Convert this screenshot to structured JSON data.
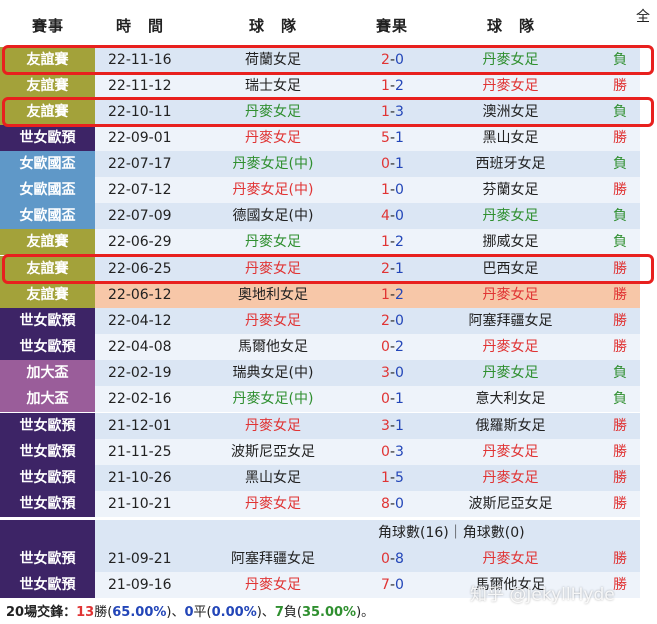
{
  "header": {
    "competition": "賽事",
    "date": "時　間",
    "home": "球　隊",
    "score": "賽果",
    "away": "球　隊",
    "extra": "全"
  },
  "colors": {
    "friendly": "#a3a23a",
    "euro_qual": "#3d2466",
    "women_euro": "#5f98c8",
    "algarve": "#9a5d9a",
    "win": "#e03434",
    "lose": "#2f8f2f",
    "highlight_box": "#e8201e"
  },
  "rows": [
    {
      "comp": "友誼賽",
      "type": "friendly",
      "date": "22-11-16",
      "home": "荷蘭女足",
      "home_c": "dark",
      "score_h": "2",
      "score_a": "0",
      "away": "丹麥女足",
      "away_c": "green",
      "res": "負",
      "res_c": "green"
    },
    {
      "comp": "友誼賽",
      "type": "friendly",
      "date": "22-11-12",
      "home": "瑞士女足",
      "home_c": "dark",
      "score_h": "1",
      "score_a": "2",
      "away": "丹麥女足",
      "away_c": "red",
      "res": "勝",
      "res_c": "red"
    },
    {
      "comp": "友誼賽",
      "type": "friendly",
      "date": "22-10-11",
      "home": "丹麥女足",
      "home_c": "green",
      "score_h": "1",
      "score_a": "3",
      "away": "澳洲女足",
      "away_c": "dark",
      "res": "負",
      "res_c": "green"
    },
    {
      "comp": "世女歐預",
      "type": "euro_qual",
      "date": "22-09-01",
      "home": "丹麥女足",
      "home_c": "red",
      "score_h": "5",
      "score_a": "1",
      "away": "黑山女足",
      "away_c": "dark",
      "res": "勝",
      "res_c": "red"
    },
    {
      "comp": "女歐國盃",
      "type": "women_euro",
      "date": "22-07-17",
      "home": "丹麥女足(中)",
      "home_c": "green",
      "score_h": "0",
      "score_a": "1",
      "away": "西班牙女足",
      "away_c": "dark",
      "res": "負",
      "res_c": "green"
    },
    {
      "comp": "女歐國盃",
      "type": "women_euro",
      "date": "22-07-12",
      "home": "丹麥女足(中)",
      "home_c": "red",
      "score_h": "1",
      "score_a": "0",
      "away": "芬蘭女足",
      "away_c": "dark",
      "res": "勝",
      "res_c": "red"
    },
    {
      "comp": "女歐國盃",
      "type": "women_euro",
      "date": "22-07-09",
      "home": "德國女足(中)",
      "home_c": "dark",
      "score_h": "4",
      "score_a": "0",
      "away": "丹麥女足",
      "away_c": "green",
      "res": "負",
      "res_c": "green"
    },
    {
      "comp": "友誼賽",
      "type": "friendly",
      "date": "22-06-29",
      "home": "丹麥女足",
      "home_c": "green",
      "score_h": "1",
      "score_a": "2",
      "away": "挪威女足",
      "away_c": "dark",
      "res": "負",
      "res_c": "green"
    },
    {
      "comp": "友誼賽",
      "type": "friendly",
      "date": "22-06-25",
      "home": "丹麥女足",
      "home_c": "red",
      "score_h": "2",
      "score_a": "1",
      "away": "巴西女足",
      "away_c": "dark",
      "res": "勝",
      "res_c": "red"
    },
    {
      "comp": "友誼賽",
      "type": "friendly",
      "date": "22-06-12",
      "home": "奧地利女足",
      "home_c": "dark",
      "score_h": "1",
      "score_a": "2",
      "away": "丹麥女足",
      "away_c": "red",
      "res": "勝",
      "res_c": "red"
    },
    {
      "comp": "世女歐預",
      "type": "euro_qual",
      "date": "22-04-12",
      "home": "丹麥女足",
      "home_c": "red",
      "score_h": "2",
      "score_a": "0",
      "away": "阿塞拜疆女足",
      "away_c": "dark",
      "res": "勝",
      "res_c": "red"
    },
    {
      "comp": "世女歐預",
      "type": "euro_qual",
      "date": "22-04-08",
      "home": "馬爾他女足",
      "home_c": "dark",
      "score_h": "0",
      "score_a": "2",
      "away": "丹麥女足",
      "away_c": "red",
      "res": "勝",
      "res_c": "red"
    },
    {
      "comp": "加大盃",
      "type": "algarve",
      "date": "22-02-19",
      "home": "瑞典女足(中)",
      "home_c": "dark",
      "score_h": "3",
      "score_a": "0",
      "away": "丹麥女足",
      "away_c": "green",
      "res": "負",
      "res_c": "green"
    },
    {
      "comp": "加大盃",
      "type": "algarve",
      "date": "22-02-16",
      "home": "丹麥女足(中)",
      "home_c": "green",
      "score_h": "0",
      "score_a": "1",
      "away": "意大利女足",
      "away_c": "dark",
      "res": "負",
      "res_c": "green"
    },
    {
      "comp": "世女歐預",
      "type": "euro_qual",
      "date": "21-12-01",
      "home": "丹麥女足",
      "home_c": "red",
      "score_h": "3",
      "score_a": "1",
      "away": "俄羅斯女足",
      "away_c": "dark",
      "res": "勝",
      "res_c": "red"
    },
    {
      "comp": "世女歐預",
      "type": "euro_qual",
      "date": "21-11-25",
      "home": "波斯尼亞女足",
      "home_c": "dark",
      "score_h": "0",
      "score_a": "3",
      "away": "丹麥女足",
      "away_c": "red",
      "res": "勝",
      "res_c": "red"
    },
    {
      "comp": "世女歐預",
      "type": "euro_qual",
      "date": "21-10-26",
      "home": "黑山女足",
      "home_c": "dark",
      "score_h": "1",
      "score_a": "5",
      "away": "丹麥女足",
      "away_c": "red",
      "res": "勝",
      "res_c": "red"
    },
    {
      "comp": "世女歐預",
      "type": "euro_qual",
      "date": "21-10-21",
      "home": "丹麥女足",
      "home_c": "red",
      "score_h": "8",
      "score_a": "0",
      "away": "波斯尼亞女足",
      "away_c": "dark",
      "res": "勝",
      "res_c": "red"
    },
    {
      "comp": "世女歐預",
      "type": "euro_qual",
      "date": "21-09-21",
      "home": "阿塞拜疆女足",
      "home_c": "dark",
      "score_h": "0",
      "score_a": "8",
      "away": "丹麥女足",
      "away_c": "red",
      "res": "勝",
      "res_c": "red"
    },
    {
      "comp": "世女歐預",
      "type": "euro_qual",
      "date": "21-09-16",
      "home": "丹麥女足",
      "home_c": "red",
      "score_h": "7",
      "score_a": "0",
      "away": "馬爾他女足",
      "away_c": "dark",
      "res": "勝",
      "res_c": "red"
    }
  ],
  "corner_text": "角球數(16)｜角球數(0)",
  "summary": {
    "prefix": "20場交鋒：",
    "wins": "13",
    "win_word": "勝(",
    "win_pct": "65.00%",
    "mid1": ")、",
    "draws": "0",
    "draw_word": "平(",
    "draw_pct": "0.00%",
    "mid2": ")、",
    "losses": "7",
    "loss_word": "負(",
    "loss_pct": "35.00%",
    "suffix": ")。"
  },
  "watermark": "知乎 @JekyllHyde"
}
